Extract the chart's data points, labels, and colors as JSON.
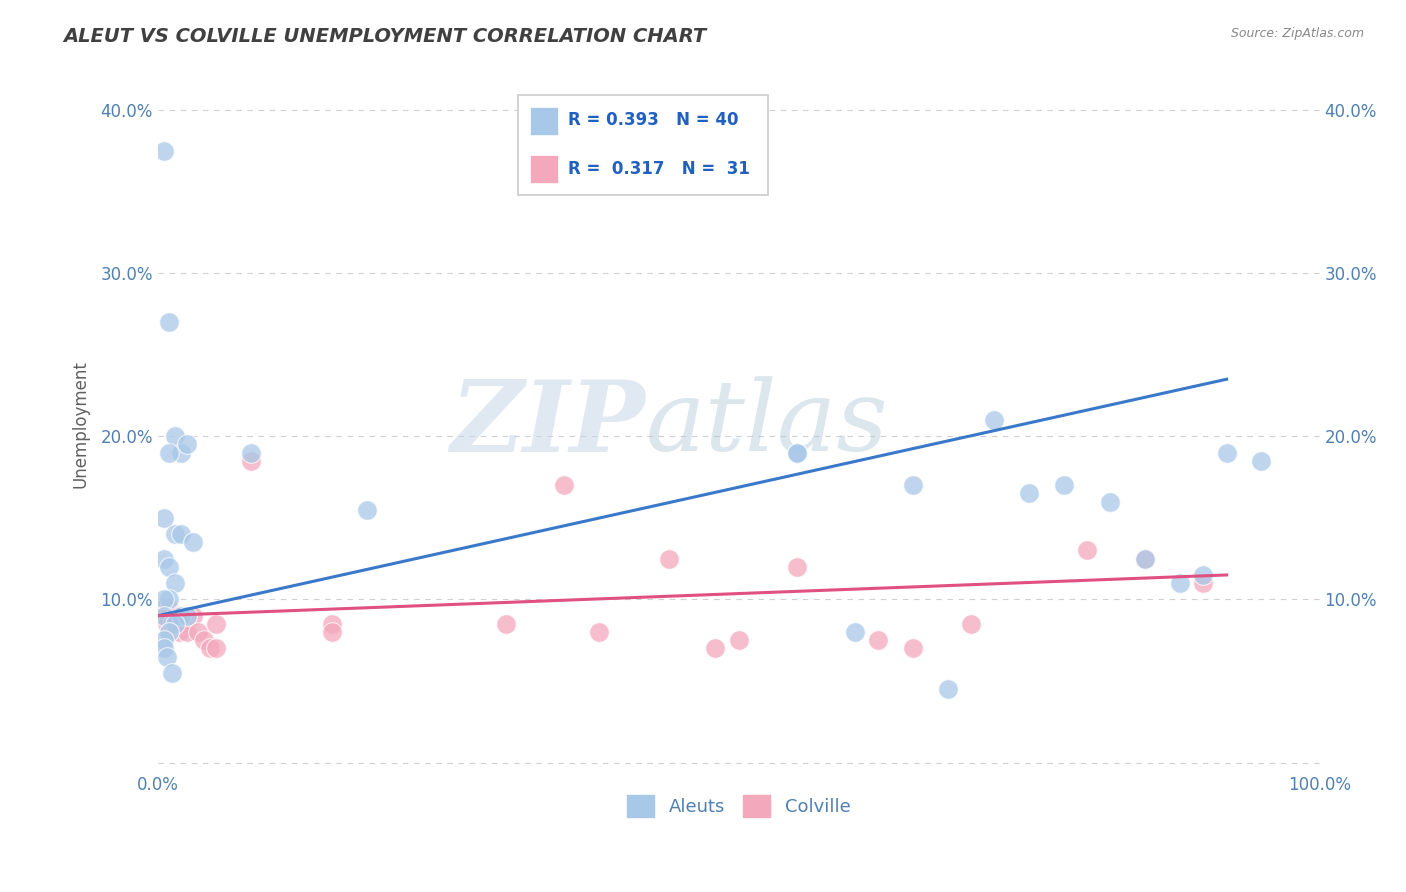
{
  "title": "ALEUT VS COLVILLE UNEMPLOYMENT CORRELATION CHART",
  "source_text": "Source: ZipAtlas.com",
  "ylabel": "Unemployment",
  "xlim": [
    0,
    1.0
  ],
  "ylim": [
    -0.005,
    0.42
  ],
  "xticks": [
    0.0,
    0.1,
    0.2,
    0.3,
    0.4,
    0.5,
    0.6,
    0.7,
    0.8,
    0.9,
    1.0
  ],
  "yticks": [
    0.0,
    0.1,
    0.2,
    0.3,
    0.4
  ],
  "blue_color": "#a8c8e8",
  "pink_color": "#f4a8bc",
  "blue_line_color": "#3a78c9",
  "pink_line_color": "#e05080",
  "legend_R1": "R = 0.393",
  "legend_N1": "N = 40",
  "legend_R2": "R =  0.317",
  "legend_N2": "N =  31",
  "legend_text_color": "#2060c0",
  "watermark_zip": "ZIP",
  "watermark_atlas": "atlas",
  "background_color": "#ffffff",
  "grid_color": "#d0d0d0",
  "title_color": "#404040",
  "axis_label_color": "#5080b0",
  "aleuts_x": [
    0.005,
    0.01,
    0.015,
    0.02,
    0.025,
    0.01,
    0.005,
    0.015,
    0.02,
    0.03,
    0.005,
    0.01,
    0.015,
    0.01,
    0.005,
    0.005,
    0.02,
    0.025,
    0.015,
    0.01,
    0.005,
    0.005,
    0.008,
    0.012,
    0.08,
    0.18,
    0.55,
    0.6,
    0.65,
    0.68,
    0.72,
    0.75,
    0.78,
    0.82,
    0.85,
    0.88,
    0.9,
    0.92,
    0.95,
    0.55
  ],
  "aleuts_y": [
    0.375,
    0.27,
    0.2,
    0.19,
    0.195,
    0.19,
    0.15,
    0.14,
    0.14,
    0.135,
    0.125,
    0.12,
    0.11,
    0.1,
    0.1,
    0.09,
    0.09,
    0.09,
    0.085,
    0.08,
    0.075,
    0.07,
    0.065,
    0.055,
    0.19,
    0.155,
    0.19,
    0.08,
    0.17,
    0.045,
    0.21,
    0.165,
    0.17,
    0.16,
    0.125,
    0.11,
    0.115,
    0.19,
    0.185,
    0.19
  ],
  "colville_x": [
    0.005,
    0.005,
    0.008,
    0.01,
    0.012,
    0.015,
    0.018,
    0.02,
    0.025,
    0.03,
    0.035,
    0.04,
    0.045,
    0.05,
    0.05,
    0.08,
    0.15,
    0.15,
    0.3,
    0.35,
    0.38,
    0.44,
    0.48,
    0.5,
    0.55,
    0.62,
    0.65,
    0.7,
    0.8,
    0.85,
    0.9
  ],
  "colville_y": [
    0.095,
    0.09,
    0.085,
    0.095,
    0.085,
    0.09,
    0.08,
    0.085,
    0.08,
    0.09,
    0.08,
    0.075,
    0.07,
    0.085,
    0.07,
    0.185,
    0.085,
    0.08,
    0.085,
    0.17,
    0.08,
    0.125,
    0.07,
    0.075,
    0.12,
    0.075,
    0.07,
    0.085,
    0.13,
    0.125,
    0.11
  ],
  "blue_trend_x": [
    0.0,
    0.92
  ],
  "blue_trend_y": [
    0.09,
    0.235
  ],
  "pink_trend_x": [
    0.0,
    0.92
  ],
  "pink_trend_y": [
    0.09,
    0.115
  ]
}
